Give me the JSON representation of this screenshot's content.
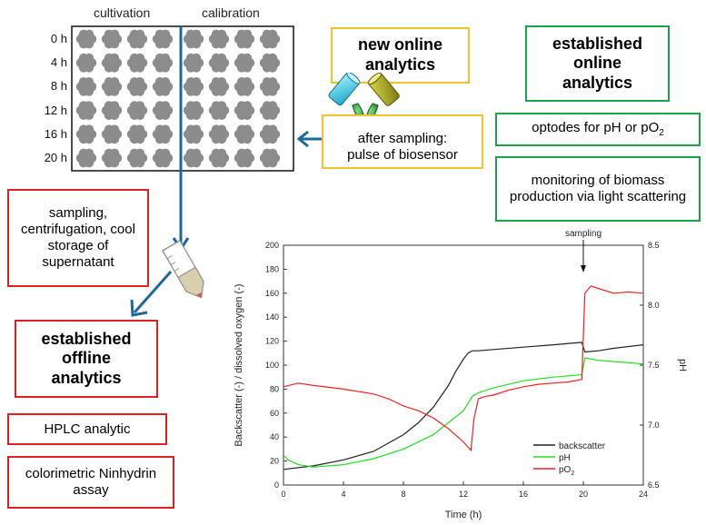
{
  "plate": {
    "col_labels": [
      "cultivation",
      "calibration"
    ],
    "row_labels": [
      "0 h",
      "4 h",
      "8 h",
      "12 h",
      "16 h",
      "20 h"
    ],
    "rows": 6,
    "cols": 8
  },
  "boxes": {
    "new_online": "new online analytics",
    "after_sampling_line1": "after sampling:",
    "after_sampling_line2": "pulse of biosensor",
    "established_online": "established online analytics",
    "optodes": "optodes for pH or pO",
    "optodes_sub": "2",
    "monitoring": "monitoring of biomass production via light scattering",
    "sampling": "sampling, centrifugation, cool storage of supernatant",
    "established_offline": "established offline analytics",
    "hplc": "HPLC analytic",
    "ninhydrin": "colorimetric Ninhydrin assay"
  },
  "chart_data": {
    "type": "line",
    "xlabel": "Time (h)",
    "ylabel": "Backscatter (-) / dissolved oxygen (-)",
    "y2label": "pH",
    "xlim": [
      0,
      24
    ],
    "ylim": [
      0,
      200
    ],
    "y2lim": [
      6.5,
      8.5
    ],
    "xticks": [
      "0",
      "4",
      "8",
      "12",
      "16",
      "20",
      "24"
    ],
    "yticks": [
      "0",
      "20",
      "40",
      "60",
      "80",
      "100",
      "120",
      "140",
      "160",
      "180",
      "200"
    ],
    "y2ticks": [
      "6.5",
      "7.0",
      "7.5",
      "8.0",
      "8.5"
    ],
    "annotation": "sampling",
    "annotation_x": 20,
    "legend_position": "bottom-right",
    "series": [
      {
        "name": "backscatter",
        "color": "#222222",
        "axis": "left",
        "x": [
          0,
          2,
          4,
          6,
          8,
          9,
          10,
          11,
          11.5,
          12,
          12.3,
          12.6,
          13,
          14,
          16,
          18,
          19.9,
          20.1,
          21,
          22,
          24
        ],
        "y": [
          13,
          16,
          21,
          28,
          42,
          52,
          65,
          83,
          95,
          105,
          110,
          112,
          112,
          113,
          115,
          117,
          119,
          111,
          112,
          114,
          117
        ]
      },
      {
        "name": "pH",
        "color": "#22dd22",
        "axis": "right",
        "x": [
          0,
          0.3,
          1,
          2,
          4,
          6,
          8,
          10,
          12,
          12.6,
          13,
          14,
          16,
          18,
          19.9,
          20.1,
          21,
          22,
          24
        ],
        "y": [
          6.75,
          6.71,
          6.67,
          6.65,
          6.67,
          6.72,
          6.8,
          6.92,
          7.12,
          7.24,
          7.27,
          7.31,
          7.37,
          7.4,
          7.42,
          7.56,
          7.54,
          7.53,
          7.51
        ]
      },
      {
        "name": "pO",
        "name_sub": "2",
        "color": "#ee2222",
        "axis": "left",
        "x": [
          0,
          1,
          2,
          4,
          6,
          7,
          8,
          9,
          10,
          11,
          12,
          12.5,
          12.7,
          13,
          13.5,
          14,
          15,
          16,
          17,
          18,
          19,
          19.9,
          20.1,
          20.5,
          21,
          22,
          23,
          24
        ],
        "y": [
          82,
          85,
          83,
          80,
          76,
          72,
          66,
          62,
          56,
          47,
          36,
          29,
          55,
          72,
          74,
          75,
          79,
          82,
          84,
          85,
          86,
          88,
          160,
          166,
          164,
          160,
          161,
          160
        ]
      }
    ]
  }
}
